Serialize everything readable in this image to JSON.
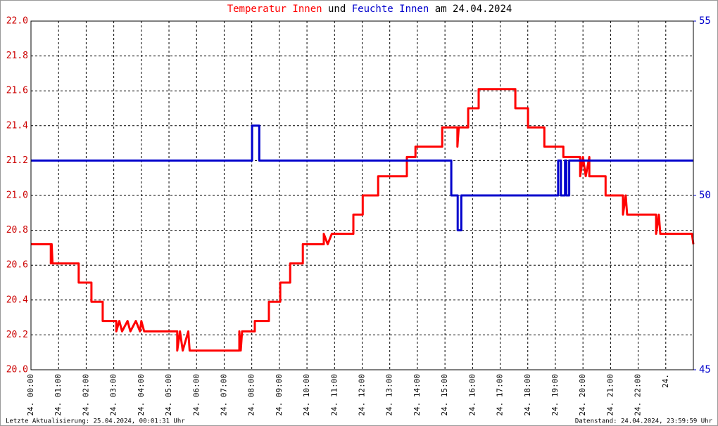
{
  "chart_data": {
    "type": "line",
    "title": {
      "connector": "und",
      "suffix": "am 24.04.2024"
    },
    "footer_left": "Letzte Aktualisierung: 25.04.2024, 00:01:31 Uhr",
    "footer_right": "Datenstand: 24.04.2024, 23:59:59 Uhr",
    "xlim": [
      0,
      24
    ],
    "xticks": [
      {
        "value": 0,
        "label": "24. 00:00"
      },
      {
        "value": 1,
        "label": "24. 01:00"
      },
      {
        "value": 2,
        "label": "24. 02:00"
      },
      {
        "value": 3,
        "label": "24. 03:00"
      },
      {
        "value": 4,
        "label": "24. 04:00"
      },
      {
        "value": 5,
        "label": "24. 05:00"
      },
      {
        "value": 6,
        "label": "24. 06:00"
      },
      {
        "value": 7,
        "label": "24. 07:00"
      },
      {
        "value": 8,
        "label": "24. 08:00"
      },
      {
        "value": 9,
        "label": "24. 09:00"
      },
      {
        "value": 10,
        "label": "24. 10:00"
      },
      {
        "value": 11,
        "label": "24. 11:00"
      },
      {
        "value": 12,
        "label": "24. 12:00"
      },
      {
        "value": 13,
        "label": "24. 13:00"
      },
      {
        "value": 14,
        "label": "24. 14:00"
      },
      {
        "value": 15,
        "label": "24. 15:00"
      },
      {
        "value": 16,
        "label": "24. 16:00"
      },
      {
        "value": 17,
        "label": "24. 17:00"
      },
      {
        "value": 18,
        "label": "24. 18:00"
      },
      {
        "value": 19,
        "label": "24. 19:00"
      },
      {
        "value": 20,
        "label": "24. 20:00"
      },
      {
        "value": 21,
        "label": "24. 21:00"
      },
      {
        "value": 22,
        "label": "24. 22:00"
      },
      {
        "value": 23,
        "label": "24."
      }
    ],
    "ylim": [
      20.0,
      22.0
    ],
    "yticks": [
      {
        "value": 20,
        "label": "20.0"
      },
      20.2,
      20.4,
      20.6,
      20.8,
      {
        "value": 21,
        "label": "21.0"
      },
      21.2,
      21.4,
      21.6,
      21.8,
      {
        "value": 22,
        "label": "22.0"
      }
    ],
    "y2lim": [
      45,
      55
    ],
    "y2ticks": [
      45,
      50,
      55
    ],
    "grid": true,
    "series": [
      {
        "name": "Temperatur Innen",
        "color": "#ff0000",
        "x": [
          0,
          0.72,
          0.72,
          0.75,
          0.78,
          1.73,
          1.73,
          2.19,
          2.19,
          2.6,
          2.6,
          3.09,
          3.09,
          3.2,
          3.3,
          3.5,
          3.6,
          3.8,
          3.95,
          4.0,
          4.1,
          5.3,
          5.3,
          5.4,
          5.5,
          5.7,
          5.75,
          7.55,
          7.55,
          7.6,
          7.65,
          8.11,
          8.11,
          8.62,
          8.62,
          9.03,
          9.03,
          9.39,
          9.39,
          9.85,
          9.85,
          10.61,
          10.61,
          10.75,
          10.9,
          11.68,
          11.68,
          12.02,
          12.02,
          12.58,
          12.58,
          13.62,
          13.62,
          13.93,
          13.93,
          14.9,
          14.9,
          15.45,
          15.45,
          15.5,
          15.84,
          15.84,
          16.22,
          16.22,
          17.55,
          17.55,
          18.01,
          18.01,
          18.6,
          18.6,
          19.29,
          19.29,
          19.9,
          19.9,
          20.0,
          20.1,
          20.23,
          20.23,
          20.82,
          20.82,
          21.45,
          21.45,
          21.55,
          21.6,
          22.65,
          22.65,
          22.75,
          22.8,
          23.95,
          24
        ],
        "values": [
          20.72,
          20.72,
          20.61,
          20.72,
          20.61,
          20.61,
          20.5,
          20.5,
          20.39,
          20.39,
          20.28,
          20.28,
          20.22,
          20.28,
          20.22,
          20.28,
          20.22,
          20.28,
          20.22,
          20.28,
          20.22,
          20.22,
          20.11,
          20.22,
          20.11,
          20.22,
          20.11,
          20.11,
          20.22,
          20.11,
          20.22,
          20.22,
          20.28,
          20.28,
          20.39,
          20.39,
          20.5,
          20.5,
          20.61,
          20.61,
          20.72,
          20.72,
          20.78,
          20.72,
          20.78,
          20.78,
          20.89,
          20.89,
          21.0,
          21.0,
          21.11,
          21.11,
          21.22,
          21.22,
          21.28,
          21.28,
          21.39,
          21.39,
          21.28,
          21.39,
          21.39,
          21.5,
          21.5,
          21.61,
          21.61,
          21.5,
          21.5,
          21.39,
          21.39,
          21.28,
          21.28,
          21.22,
          21.22,
          21.11,
          21.22,
          21.11,
          21.22,
          21.11,
          21.11,
          21.0,
          21.0,
          20.89,
          21.0,
          20.89,
          20.89,
          20.78,
          20.89,
          20.78,
          20.78,
          20.72
        ]
      },
      {
        "name": "Feuchte Innen",
        "color": "#0000cc",
        "axis": "y2",
        "x": [
          0,
          8.01,
          8.01,
          8.27,
          8.27,
          15.23,
          15.23,
          15.46,
          15.46,
          15.59,
          15.59,
          19.1,
          19.1,
          19.2,
          19.2,
          19.35,
          19.35,
          19.4,
          19.4,
          19.5,
          19.5,
          24
        ],
        "values": [
          51,
          51,
          52,
          52,
          51,
          51,
          50,
          50,
          49,
          49,
          50,
          50,
          51,
          51,
          50,
          50,
          51,
          51,
          50,
          50,
          51,
          51
        ]
      }
    ]
  }
}
